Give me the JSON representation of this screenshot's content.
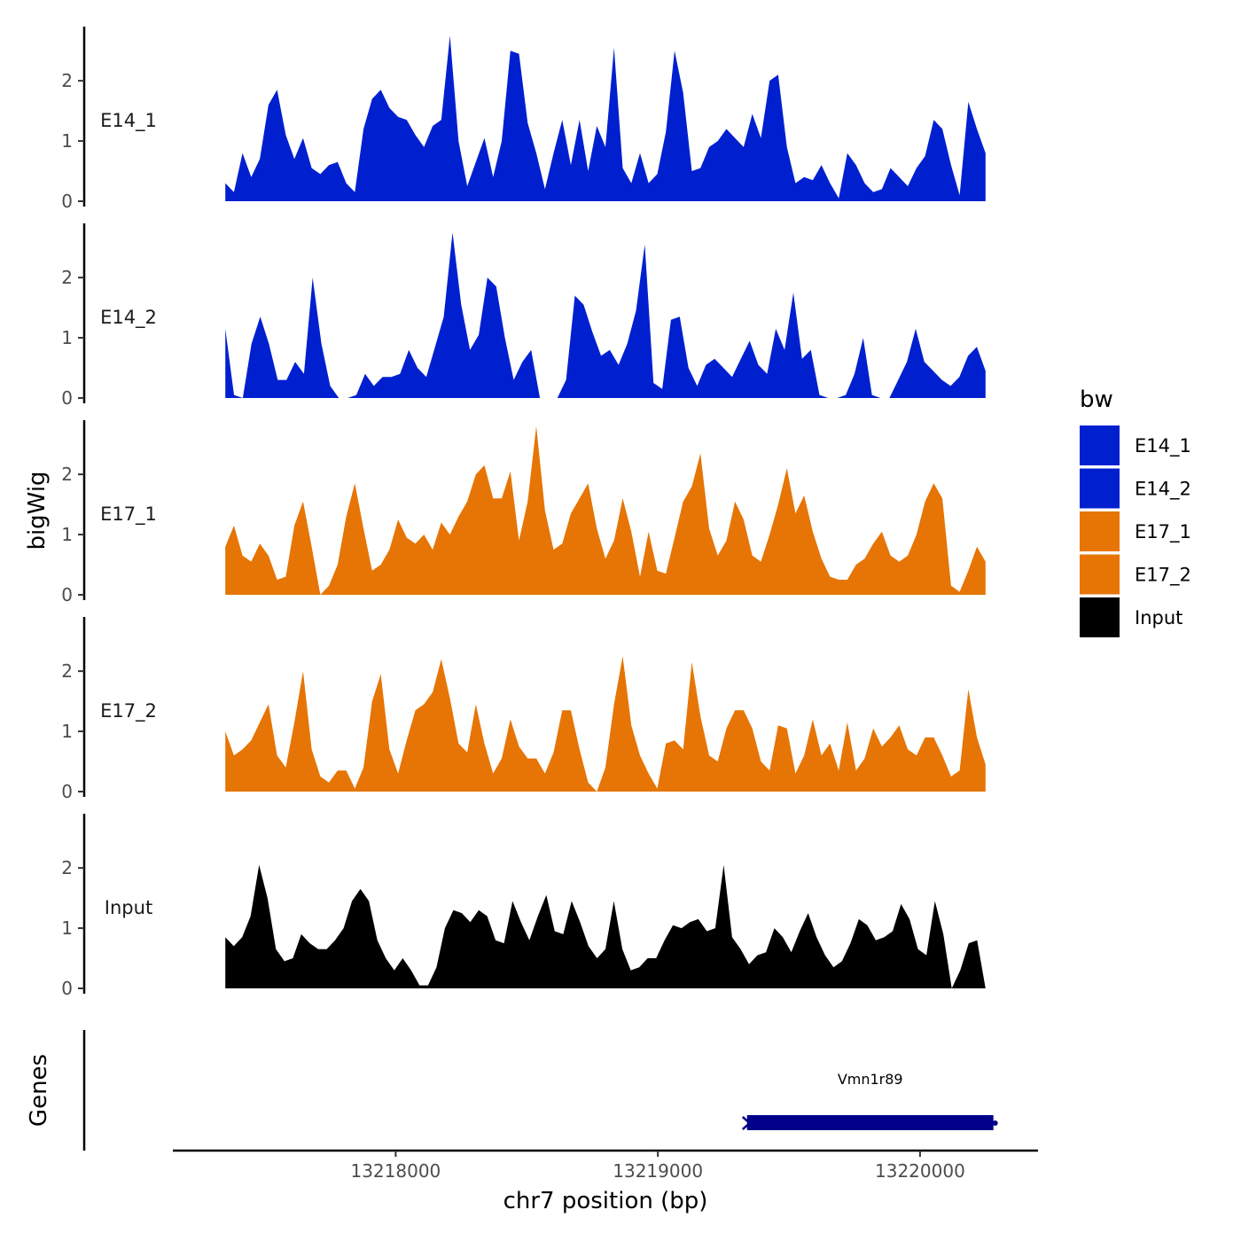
{
  "chart_data": {
    "type": "area",
    "xlabel": "chr7 position (bp)",
    "ylabel": "bigWig",
    "genes_label": "Genes",
    "xlim": [
      13217150,
      13220450
    ],
    "ylim": [
      0,
      2.9
    ],
    "x_ticks": [
      13218000,
      13219000,
      13220000
    ],
    "x_tick_labels": [
      "13218000",
      "13219000",
      "13220000"
    ],
    "y_ticks": [
      0,
      1,
      2
    ],
    "y_tick_labels": [
      "0",
      "1",
      "2"
    ],
    "x_start": 13217350,
    "x_end": 13220250,
    "legend": {
      "title": "bw",
      "items": [
        {
          "label": "E14_1",
          "color": "#0020d0"
        },
        {
          "label": "E14_2",
          "color": "#0020d0"
        },
        {
          "label": "E17_1",
          "color": "#e67505"
        },
        {
          "label": "E17_2",
          "color": "#e67505"
        },
        {
          "label": "Input",
          "color": "#000000"
        }
      ]
    },
    "series": [
      {
        "name": "E14_1",
        "color": "#0020d0",
        "values": [
          0.3,
          0.15,
          0.8,
          0.4,
          0.7,
          1.6,
          1.85,
          1.1,
          0.7,
          1.05,
          0.55,
          0.45,
          0.6,
          0.65,
          0.3,
          0.15,
          1.2,
          1.7,
          1.85,
          1.55,
          1.4,
          1.35,
          1.1,
          0.9,
          1.25,
          1.35,
          2.75,
          1.0,
          0.25,
          0.65,
          1.05,
          0.4,
          1.0,
          2.5,
          2.45,
          1.3,
          0.8,
          0.2,
          0.8,
          1.35,
          0.6,
          1.35,
          0.5,
          1.25,
          0.9,
          2.55,
          0.55,
          0.3,
          0.8,
          0.3,
          0.45,
          1.15,
          2.5,
          1.8,
          0.5,
          0.55,
          0.9,
          1.0,
          1.2,
          1.05,
          0.9,
          1.45,
          1.05,
          2.0,
          2.1,
          0.9,
          0.3,
          0.4,
          0.35,
          0.6,
          0.3,
          0.05,
          0.8,
          0.6,
          0.3,
          0.15,
          0.2,
          0.55,
          0.4,
          0.25,
          0.55,
          0.75,
          1.35,
          1.2,
          0.6,
          0.1,
          1.65,
          1.2,
          0.8
        ]
      },
      {
        "name": "E14_2",
        "color": "#0020d0",
        "values": [
          1.15,
          0.05,
          0.0,
          0.9,
          1.35,
          0.9,
          0.3,
          0.3,
          0.6,
          0.4,
          2.0,
          0.9,
          0.2,
          0.0,
          0.0,
          0.05,
          0.4,
          0.2,
          0.35,
          0.35,
          0.4,
          0.8,
          0.5,
          0.35,
          0.85,
          1.35,
          2.75,
          1.55,
          0.8,
          1.05,
          2.0,
          1.85,
          1.0,
          0.3,
          0.6,
          0.8,
          0.0,
          0.0,
          0.0,
          0.3,
          1.7,
          1.55,
          1.1,
          0.7,
          0.8,
          0.55,
          0.9,
          1.45,
          2.55,
          0.25,
          0.15,
          1.3,
          1.35,
          0.5,
          0.2,
          0.55,
          0.65,
          0.5,
          0.35,
          0.65,
          0.95,
          0.55,
          0.4,
          1.15,
          0.8,
          1.75,
          0.65,
          0.8,
          0.05,
          0.0,
          0.0,
          0.05,
          0.4,
          1.0,
          0.05,
          0.0,
          0.0,
          0.3,
          0.6,
          1.15,
          0.6,
          0.45,
          0.3,
          0.2,
          0.35,
          0.7,
          0.85,
          0.45
        ]
      },
      {
        "name": "E17_1",
        "color": "#e67505",
        "values": [
          0.8,
          1.15,
          0.65,
          0.55,
          0.85,
          0.65,
          0.25,
          0.3,
          1.15,
          1.55,
          0.8,
          0.0,
          0.15,
          0.5,
          1.3,
          1.85,
          1.1,
          0.4,
          0.5,
          0.75,
          1.25,
          0.95,
          0.85,
          1.0,
          0.75,
          1.2,
          1.0,
          1.3,
          1.55,
          2.0,
          2.15,
          1.6,
          1.6,
          2.05,
          0.9,
          1.55,
          2.8,
          1.4,
          0.75,
          0.85,
          1.35,
          1.6,
          1.85,
          1.1,
          0.6,
          0.9,
          1.6,
          1.05,
          0.3,
          1.05,
          0.4,
          0.35,
          0.95,
          1.55,
          1.8,
          2.35,
          1.1,
          0.65,
          0.9,
          1.55,
          1.25,
          0.65,
          0.55,
          1.0,
          1.5,
          2.1,
          1.35,
          1.65,
          1.05,
          0.6,
          0.3,
          0.25,
          0.25,
          0.5,
          0.6,
          0.85,
          1.05,
          0.65,
          0.55,
          0.65,
          1.0,
          1.55,
          1.85,
          1.6,
          0.15,
          0.05,
          0.4,
          0.8,
          0.55
        ]
      },
      {
        "name": "E17_2",
        "color": "#e67505",
        "values": [
          1.0,
          0.6,
          0.7,
          0.85,
          1.15,
          1.45,
          0.6,
          0.4,
          1.15,
          2.0,
          0.7,
          0.25,
          0.15,
          0.35,
          0.35,
          0.05,
          0.4,
          1.5,
          1.95,
          0.7,
          0.3,
          0.85,
          1.35,
          1.45,
          1.65,
          2.2,
          1.55,
          0.8,
          0.65,
          1.45,
          0.8,
          0.3,
          0.55,
          1.2,
          0.75,
          0.55,
          0.55,
          0.3,
          0.65,
          1.35,
          1.35,
          0.7,
          0.15,
          0.0,
          0.4,
          1.45,
          2.25,
          1.1,
          0.6,
          0.3,
          0.05,
          0.8,
          0.85,
          0.7,
          2.15,
          1.25,
          0.6,
          0.5,
          1.05,
          1.35,
          1.35,
          1.05,
          0.5,
          0.35,
          1.1,
          1.05,
          0.3,
          0.6,
          1.2,
          0.6,
          0.8,
          0.35,
          1.15,
          0.35,
          0.55,
          1.05,
          0.75,
          0.9,
          1.1,
          0.7,
          0.6,
          0.9,
          0.9,
          0.6,
          0.25,
          0.35,
          1.7,
          0.9,
          0.45
        ]
      },
      {
        "name": "Input",
        "color": "#000000",
        "values": [
          0.85,
          0.7,
          0.85,
          1.2,
          2.05,
          1.5,
          0.65,
          0.45,
          0.5,
          0.9,
          0.75,
          0.65,
          0.65,
          0.8,
          1.0,
          1.45,
          1.65,
          1.45,
          0.8,
          0.5,
          0.3,
          0.5,
          0.3,
          0.05,
          0.05,
          0.35,
          1.0,
          1.3,
          1.25,
          1.1,
          1.3,
          1.2,
          0.8,
          0.75,
          1.45,
          1.1,
          0.8,
          1.2,
          1.55,
          0.95,
          0.9,
          1.45,
          1.1,
          0.7,
          0.5,
          0.65,
          1.45,
          0.65,
          0.3,
          0.35,
          0.5,
          0.5,
          0.8,
          1.05,
          1.0,
          1.1,
          1.15,
          0.95,
          1.0,
          2.05,
          0.85,
          0.65,
          0.4,
          0.55,
          0.6,
          1.0,
          0.85,
          0.6,
          0.95,
          1.25,
          0.85,
          0.55,
          0.35,
          0.45,
          0.75,
          1.15,
          1.05,
          0.8,
          0.85,
          0.95,
          1.4,
          1.15,
          0.65,
          0.55,
          1.45,
          0.9,
          0.0,
          0.3,
          0.75,
          0.8,
          0.0
        ]
      }
    ],
    "genes": [
      {
        "name": "Vmn1r89",
        "start": 13219330,
        "end": 13220290,
        "strand": "-",
        "color": "#00008b"
      }
    ]
  }
}
